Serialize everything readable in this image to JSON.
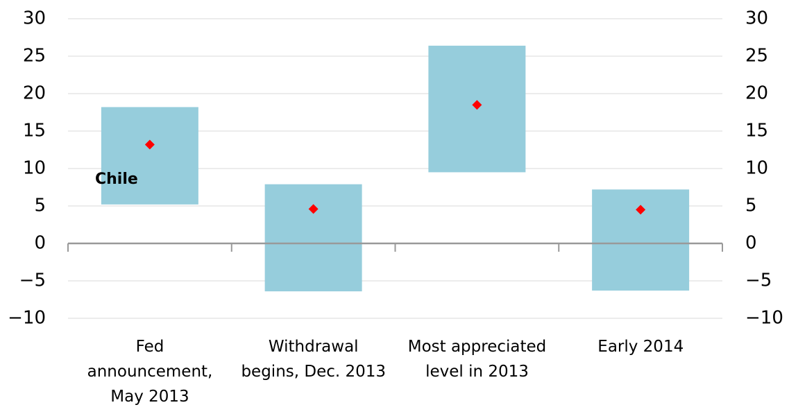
{
  "chart_data": {
    "type": "range",
    "categories": [
      "Fed\nannouncement,\nMay 2013",
      "Withdrawal\nbegins, Dec. 2013",
      "Most appreciated\nlevel in 2013",
      "Early 2014"
    ],
    "series": [
      {
        "color": "#96cddc",
        "low": [
          5.2,
          -6.4,
          9.5,
          -6.3
        ],
        "high": [
          18.2,
          7.9,
          26.4,
          7.2
        ]
      },
      {
        "color": "#ff0000",
        "values": [
          13.2,
          4.6,
          18.5,
          4.5
        ]
      }
    ],
    "annotation": "Chile",
    "ylim": [
      -10,
      30
    ],
    "yticks": [
      {
        "value": -10,
        "label": "−10"
      },
      {
        "value": -5,
        "label": "−5"
      },
      0,
      5,
      10,
      15,
      20,
      25,
      30
    ],
    "y2lim": [
      -10,
      30
    ],
    "y2ticks": [
      {
        "value": -10,
        "label": "−10"
      },
      {
        "value": -5,
        "label": "−5"
      },
      0,
      5,
      10,
      15,
      20,
      25,
      30
    ],
    "grid": true
  }
}
